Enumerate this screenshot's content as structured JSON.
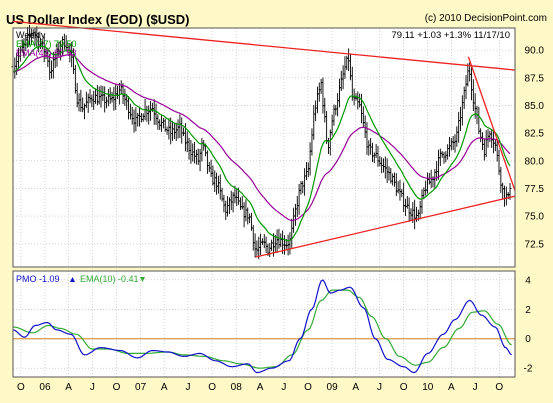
{
  "header": {
    "title": "US Dollar Index (EOD) ($USD)",
    "copyright": "(c) 2010 DecisionPoint.com",
    "quote": "79.11  +1.03  +1.3%  11/17/10"
  },
  "colors": {
    "frame_bg": "#fef9c6",
    "plot_bg": "#ffffff",
    "grid": "#b8b8b8",
    "price": "#000000",
    "ema_fast": "#009900",
    "ema_slow": "#990099",
    "trendline": "#ee2222",
    "pmo": "#1111cc",
    "pmo_signal": "#33aa33",
    "zero_line": "#dd9944"
  },
  "chart_data": [
    {
      "type": "ohlc",
      "periodicity": "Weekly",
      "ylim": [
        70.4,
        92.0
      ],
      "yticks": [
        72.5,
        75.0,
        77.5,
        80.0,
        82.5,
        85.0,
        87.5,
        90.0
      ],
      "ytick_labels": [
        "72.5",
        "75.0",
        "77.5",
        "80.0",
        "82.5",
        "85.0",
        "87.5",
        "90.0"
      ],
      "x_range": [
        "2005-09-01",
        "2010-11-30"
      ],
      "x_tick_labels": [
        "O",
        "06",
        "A",
        "J",
        "O",
        "07",
        "A",
        "J",
        "O",
        "08",
        "A",
        "J",
        "O",
        "09",
        "A",
        "J",
        "O",
        "10",
        "A",
        "J",
        "O"
      ],
      "grid": true,
      "legend": {
        "periodicity_label": "Weekly",
        "ema_fast": "EMA(17) 79.50",
        "ema_slow": "EMA(43) 80.53"
      },
      "close_path": [
        [
          "2005-09-01",
          88.5
        ],
        [
          "2005-11-15",
          91.8
        ],
        [
          "2006-01-10",
          89.5
        ],
        [
          "2006-01-20",
          88.0
        ],
        [
          "2006-03-01",
          90.5
        ],
        [
          "2006-03-20",
          90.8
        ],
        [
          "2006-04-10",
          89.5
        ],
        [
          "2006-05-05",
          85.5
        ],
        [
          "2006-05-25",
          84.8
        ],
        [
          "2006-07-01",
          85.8
        ],
        [
          "2006-08-15",
          85.5
        ],
        [
          "2006-09-15",
          85.5
        ],
        [
          "2006-10-15",
          86.5
        ],
        [
          "2006-12-01",
          84.0
        ],
        [
          "2006-12-15",
          83.5
        ],
        [
          "2007-01-15",
          84.5
        ],
        [
          "2007-02-15",
          84.8
        ],
        [
          "2007-03-15",
          83.5
        ],
        [
          "2007-04-25",
          82.5
        ],
        [
          "2007-06-01",
          83.0
        ],
        [
          "2007-06-15",
          82.0
        ],
        [
          "2007-07-15",
          80.8
        ],
        [
          "2007-08-10",
          80.0
        ],
        [
          "2007-08-25",
          81.5
        ],
        [
          "2007-09-25",
          78.5
        ],
        [
          "2007-10-20",
          78.0
        ],
        [
          "2007-11-20",
          75.5
        ],
        [
          "2007-12-25",
          76.8
        ],
        [
          "2008-01-20",
          75.5
        ],
        [
          "2008-02-20",
          75.0
        ],
        [
          "2008-03-15",
          71.8
        ],
        [
          "2008-04-15",
          72.5
        ],
        [
          "2008-05-01",
          72.0
        ],
        [
          "2008-06-01",
          73.0
        ],
        [
          "2008-07-10",
          72.5
        ],
        [
          "2008-07-25",
          72.8
        ],
        [
          "2008-08-10",
          75.0
        ],
        [
          "2008-09-01",
          77.5
        ],
        [
          "2008-10-01",
          79.0
        ],
        [
          "2008-10-25",
          84.5
        ],
        [
          "2008-11-20",
          87.0
        ],
        [
          "2008-12-15",
          81.0
        ],
        [
          "2008-12-30",
          83.5
        ],
        [
          "2009-01-20",
          85.5
        ],
        [
          "2009-02-20",
          88.5
        ],
        [
          "2009-03-05",
          89.2
        ],
        [
          "2009-03-20",
          85.5
        ],
        [
          "2009-04-15",
          85.0
        ],
        [
          "2009-05-20",
          81.0
        ],
        [
          "2009-06-15",
          80.5
        ],
        [
          "2009-07-15",
          79.5
        ],
        [
          "2009-08-15",
          78.5
        ],
        [
          "2009-09-15",
          77.0
        ],
        [
          "2009-10-15",
          75.8
        ],
        [
          "2009-11-25",
          74.8
        ],
        [
          "2009-12-20",
          77.5
        ],
        [
          "2010-01-20",
          78.5
        ],
        [
          "2010-02-20",
          80.5
        ],
        [
          "2010-03-20",
          81.0
        ],
        [
          "2010-04-20",
          82.0
        ],
        [
          "2010-05-20",
          86.0
        ],
        [
          "2010-06-07",
          88.5
        ],
        [
          "2010-06-25",
          85.5
        ],
        [
          "2010-07-15",
          82.8
        ],
        [
          "2010-08-05",
          81.0
        ],
        [
          "2010-08-25",
          82.8
        ],
        [
          "2010-09-15",
          81.5
        ],
        [
          "2010-10-05",
          78.5
        ],
        [
          "2010-10-15",
          77.2
        ],
        [
          "2010-11-05",
          76.5
        ],
        [
          "2010-11-17",
          79.11
        ]
      ],
      "trendlines": [
        {
          "from": [
            "2005-09-01",
            92.6
          ],
          "to": [
            "2010-11-30",
            88.2
          ]
        },
        {
          "from": [
            "2008-03-15",
            71.3
          ],
          "to": [
            "2010-11-30",
            76.8
          ]
        },
        {
          "from": [
            "2010-06-05",
            89.4
          ],
          "to": [
            "2010-11-30",
            77.3
          ]
        }
      ]
    },
    {
      "type": "line",
      "legend": {
        "pmo": "PMO -1.09",
        "signal": "EMA(10) -0.41"
      },
      "ylim": [
        -2.6,
        4.6
      ],
      "yticks": [
        -2,
        0,
        2,
        4
      ],
      "ytick_labels": [
        "-2",
        "0",
        "2",
        "4"
      ],
      "zero_line": 0,
      "series": [
        {
          "key": "pmo",
          "values": [
            [
              "2005-09-01",
              0.6
            ],
            [
              "2005-10-15",
              0.1
            ],
            [
              "2005-11-25",
              0.9
            ],
            [
              "2006-01-10",
              1.1
            ],
            [
              "2006-02-15",
              0.6
            ],
            [
              "2006-04-10",
              0.3
            ],
            [
              "2006-06-01",
              -1.1
            ],
            [
              "2006-08-01",
              -0.6
            ],
            [
              "2006-10-15",
              -0.8
            ],
            [
              "2006-12-20",
              -1.3
            ],
            [
              "2007-02-15",
              -0.8
            ],
            [
              "2007-04-15",
              -0.9
            ],
            [
              "2007-06-15",
              -1.2
            ],
            [
              "2007-08-15",
              -1.0
            ],
            [
              "2007-10-15",
              -1.5
            ],
            [
              "2007-12-15",
              -1.9
            ],
            [
              "2008-02-15",
              -1.7
            ],
            [
              "2008-03-20",
              -2.3
            ],
            [
              "2008-05-15",
              -2.0
            ],
            [
              "2008-07-20",
              -1.5
            ],
            [
              "2008-09-01",
              0.0
            ],
            [
              "2008-10-15",
              2.0
            ],
            [
              "2008-11-25",
              4.0
            ],
            [
              "2008-12-25",
              3.1
            ],
            [
              "2009-02-01",
              3.3
            ],
            [
              "2009-03-10",
              3.5
            ],
            [
              "2009-05-01",
              2.1
            ],
            [
              "2009-06-15",
              0.0
            ],
            [
              "2009-08-01",
              -1.4
            ],
            [
              "2009-10-01",
              -1.9
            ],
            [
              "2009-11-10",
              -2.3
            ],
            [
              "2010-01-01",
              -1.0
            ],
            [
              "2010-03-01",
              0.3
            ],
            [
              "2010-04-15",
              1.3
            ],
            [
              "2010-06-10",
              2.6
            ],
            [
              "2010-07-25",
              1.6
            ],
            [
              "2010-09-15",
              0.8
            ],
            [
              "2010-10-25",
              -0.6
            ],
            [
              "2010-11-17",
              -1.09
            ]
          ]
        },
        {
          "key": "signal",
          "values": [
            [
              "2005-09-01",
              0.8
            ],
            [
              "2005-11-15",
              0.4
            ],
            [
              "2006-01-15",
              0.9
            ],
            [
              "2006-03-01",
              0.7
            ],
            [
              "2006-05-01",
              0.3
            ],
            [
              "2006-07-01",
              -0.7
            ],
            [
              "2006-09-01",
              -0.7
            ],
            [
              "2006-11-15",
              -1.0
            ],
            [
              "2007-01-15",
              -1.0
            ],
            [
              "2007-04-15",
              -0.9
            ],
            [
              "2007-06-15",
              -1.1
            ],
            [
              "2007-09-01",
              -1.2
            ],
            [
              "2007-11-15",
              -1.5
            ],
            [
              "2008-01-15",
              -1.7
            ],
            [
              "2008-04-01",
              -2.0
            ],
            [
              "2008-06-01",
              -1.9
            ],
            [
              "2008-08-01",
              -1.1
            ],
            [
              "2008-10-01",
              0.6
            ],
            [
              "2008-11-20",
              2.6
            ],
            [
              "2009-01-01",
              3.3
            ],
            [
              "2009-03-01",
              3.3
            ],
            [
              "2009-04-15",
              2.8
            ],
            [
              "2009-06-01",
              1.5
            ],
            [
              "2009-07-25",
              0.0
            ],
            [
              "2009-09-15",
              -1.2
            ],
            [
              "2009-11-15",
              -1.8
            ],
            [
              "2010-01-01",
              -1.6
            ],
            [
              "2010-03-01",
              -0.6
            ],
            [
              "2010-05-01",
              0.7
            ],
            [
              "2010-06-20",
              1.8
            ],
            [
              "2010-08-05",
              1.9
            ],
            [
              "2010-09-25",
              1.0
            ],
            [
              "2010-11-17",
              -0.41
            ]
          ]
        }
      ]
    }
  ]
}
